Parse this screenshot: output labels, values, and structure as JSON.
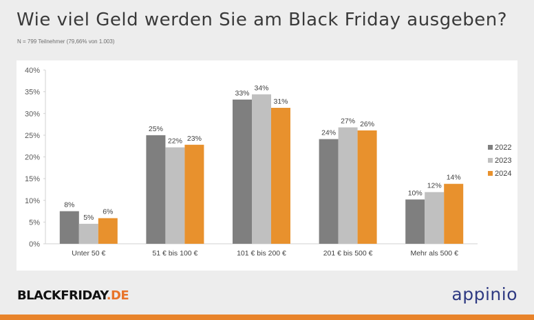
{
  "title": "Wie viel Geld werden Sie am Black Friday ausgeben?",
  "subtitle": "N = 799 Teilnehmer (79,66% von 1.003)",
  "logo_left": {
    "main": "BLACKFRIDAY",
    "suffix": ".DE"
  },
  "logo_right": "appinio",
  "colors": {
    "2022": "#7f7f7f",
    "2023": "#c0c0c0",
    "2024": "#e8912d"
  },
  "chart_data": {
    "type": "bar",
    "title": "",
    "xlabel": "",
    "ylabel": "",
    "categories": [
      "Unter 50 €",
      "51 € bis 100 €",
      "101 € bis 200 €",
      "201 € bis 500 €",
      "Mehr als 500 €"
    ],
    "series": [
      {
        "name": "2022",
        "values": [
          7.5,
          25,
          33.2,
          24.1,
          10.2
        ],
        "labels": [
          "8%",
          "25%",
          "33%",
          "24%",
          "10%"
        ],
        "color": "#7f7f7f"
      },
      {
        "name": "2023",
        "values": [
          4.6,
          22.2,
          34.4,
          26.8,
          11.9
        ],
        "labels": [
          "5%",
          "22%",
          "34%",
          "27%",
          "12%"
        ],
        "color": "#c0c0c0"
      },
      {
        "name": "2024",
        "values": [
          5.9,
          22.8,
          31.3,
          26.1,
          13.8
        ],
        "labels": [
          "6%",
          "23%",
          "31%",
          "26%",
          "14%"
        ],
        "color": "#e8912d"
      }
    ],
    "yticks": [
      "0%",
      "5%",
      "10%",
      "15%",
      "20%",
      "25%",
      "30%",
      "35%",
      "40%"
    ],
    "ylim": [
      0,
      40
    ],
    "grid": false,
    "legend_position": "right"
  }
}
